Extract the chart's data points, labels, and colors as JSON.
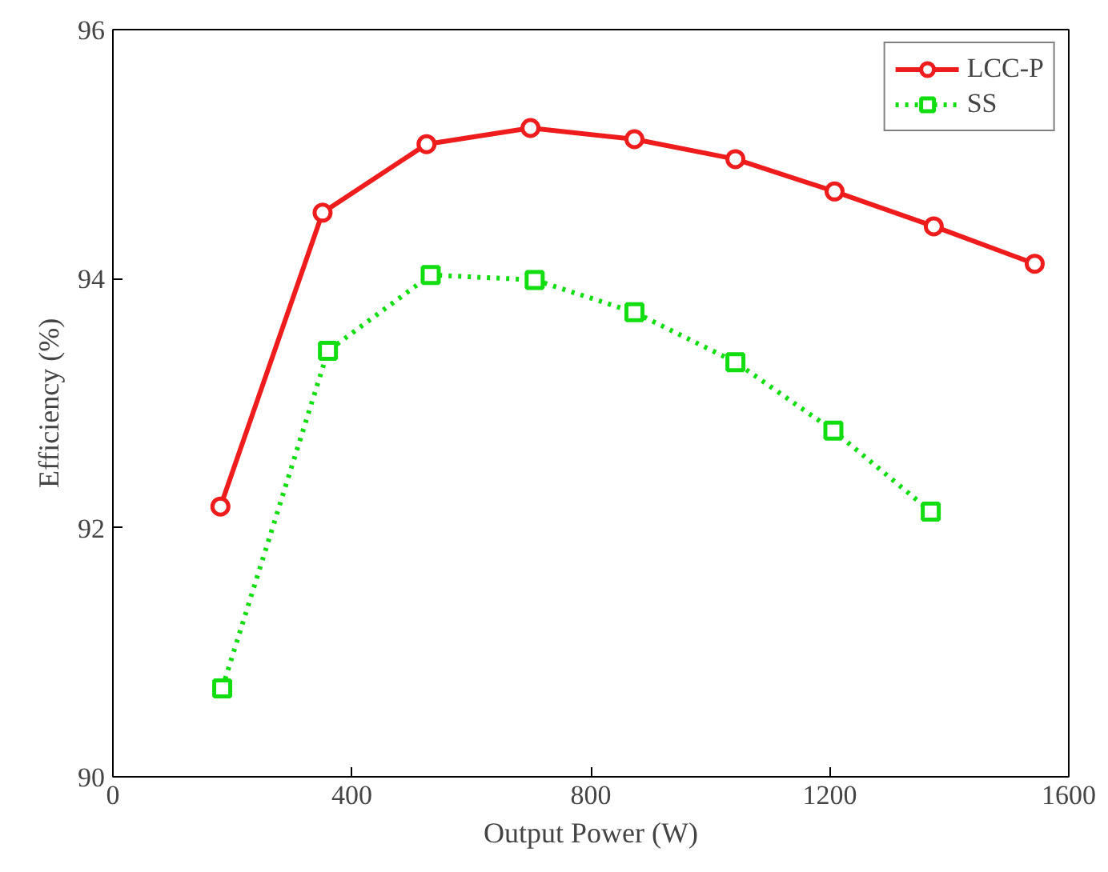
{
  "chart_data": {
    "type": "line",
    "xlabel": "Output Power (W)",
    "ylabel": "Efficiency (%)",
    "xlim": [
      0,
      1600
    ],
    "xticks": [
      0,
      400,
      800,
      1200,
      1600
    ],
    "ylim": [
      90,
      96
    ],
    "yticks": [
      90,
      92,
      94,
      96
    ],
    "grid": false,
    "legend": "top right",
    "series": [
      {
        "name": "LCC-P",
        "color": "#ee1c1c",
        "marker": "circle",
        "line_style": "solid",
        "x": [
          180,
          351,
          525,
          699,
          873,
          1042,
          1208,
          1374,
          1543
        ],
        "values": [
          92.17,
          94.53,
          95.08,
          95.21,
          95.12,
          94.96,
          94.7,
          94.42,
          94.12
        ]
      },
      {
        "name": "SS",
        "color": "#11dd11",
        "marker": "square",
        "line_style": "dotted",
        "x": [
          183,
          360,
          532,
          706,
          873,
          1042,
          1206,
          1369
        ],
        "values": [
          90.71,
          93.42,
          94.03,
          93.99,
          93.73,
          93.33,
          92.78,
          92.13
        ]
      }
    ]
  }
}
